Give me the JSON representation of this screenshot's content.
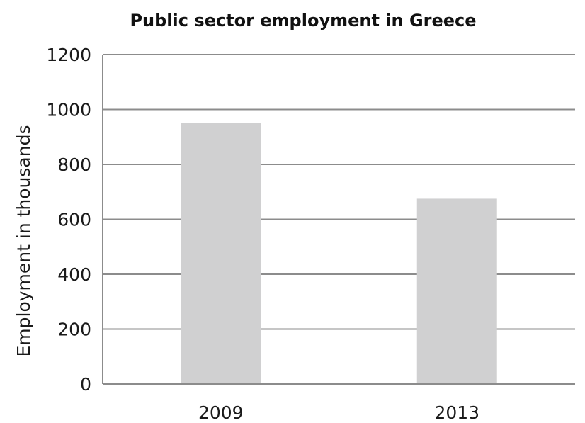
{
  "chart_data": {
    "type": "bar",
    "title": "Public sector employment in Greece",
    "xlabel": "",
    "ylabel": "Employment in thousands",
    "categories": [
      "2009",
      "2013"
    ],
    "values": [
      950,
      675
    ],
    "ylim": [
      0,
      1200
    ],
    "yticks": [
      "0",
      "200",
      "400",
      "600",
      "800",
      "1000",
      "1200"
    ],
    "grid": true,
    "legend": "none",
    "bar_color": "#d0d0d1",
    "grid_color": "#8c8c8c"
  }
}
